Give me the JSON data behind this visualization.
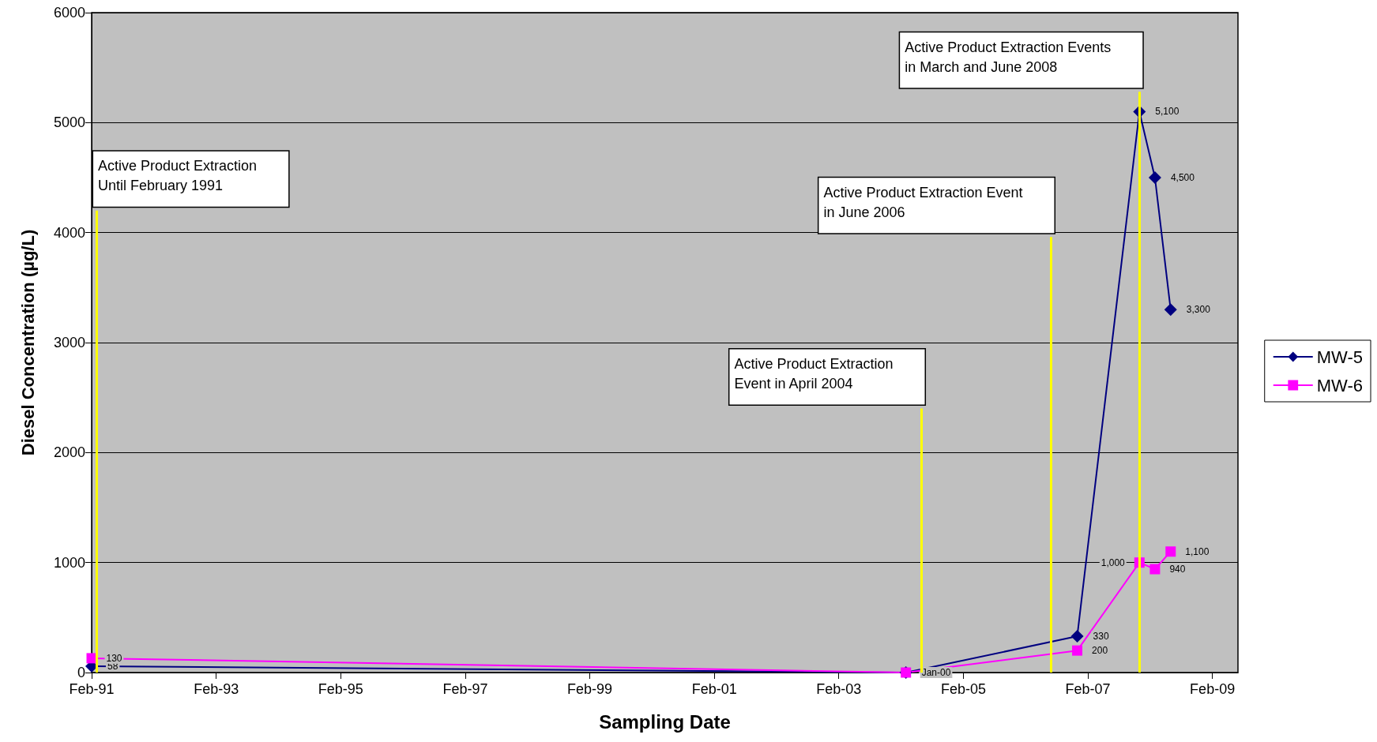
{
  "chart_data": {
    "type": "line",
    "xlabel": "Sampling Date",
    "ylabel": "Diesel Concentration (µg/L)",
    "x": [
      "1991-02",
      "2004-03",
      "2006-12",
      "2007-12",
      "2008-03",
      "2008-06"
    ],
    "series": [
      {
        "name": "MW-5",
        "color": "#000080",
        "marker": "diamond",
        "values": [
          58,
          0,
          330,
          5100,
          4500,
          3300
        ],
        "value_labels": [
          "58",
          "Jan-00",
          "330",
          "5,100",
          "4,500",
          "3,300"
        ]
      },
      {
        "name": "MW-6",
        "color": "#ff00ff",
        "marker": "square",
        "values": [
          130,
          0,
          200,
          1000,
          940,
          1100
        ],
        "value_labels": [
          "130",
          null,
          "200",
          "1,000",
          "940",
          "1,100"
        ]
      }
    ],
    "xlim": [
      "1991-02",
      "2009-07"
    ],
    "xticks": [
      {
        "value": "1991-02",
        "label": "Feb-91"
      },
      {
        "value": "1993-02",
        "label": "Feb-93"
      },
      {
        "value": "1995-02",
        "label": "Feb-95"
      },
      {
        "value": "1997-02",
        "label": "Feb-97"
      },
      {
        "value": "1999-02",
        "label": "Feb-99"
      },
      {
        "value": "2001-02",
        "label": "Feb-01"
      },
      {
        "value": "2003-02",
        "label": "Feb-03"
      },
      {
        "value": "2005-02",
        "label": "Feb-05"
      },
      {
        "value": "2007-02",
        "label": "Feb-07"
      },
      {
        "value": "2009-02",
        "label": "Feb-09"
      }
    ],
    "ylim": [
      0,
      6000
    ],
    "yticks": [
      0,
      1000,
      2000,
      3000,
      4000,
      5000,
      6000
    ],
    "grid": "y",
    "legend": "right",
    "ref_lines": [
      {
        "axis": "x",
        "value": "1991-03",
        "label": "Active Product Extraction\nUntil February 1991",
        "color": "#ffff00"
      },
      {
        "axis": "x",
        "value": "2004-06",
        "label": "Active Product Extraction\nEvent in April 2004",
        "color": "#ffff00"
      },
      {
        "axis": "x",
        "value": "2006-07",
        "label": "Active Product Extraction Event\nin June 2006",
        "color": "#ffff00"
      },
      {
        "axis": "x",
        "value": "2007-12",
        "label": "Active Product Extraction Events\nin March and June 2008",
        "color": "#ffff00"
      }
    ]
  }
}
